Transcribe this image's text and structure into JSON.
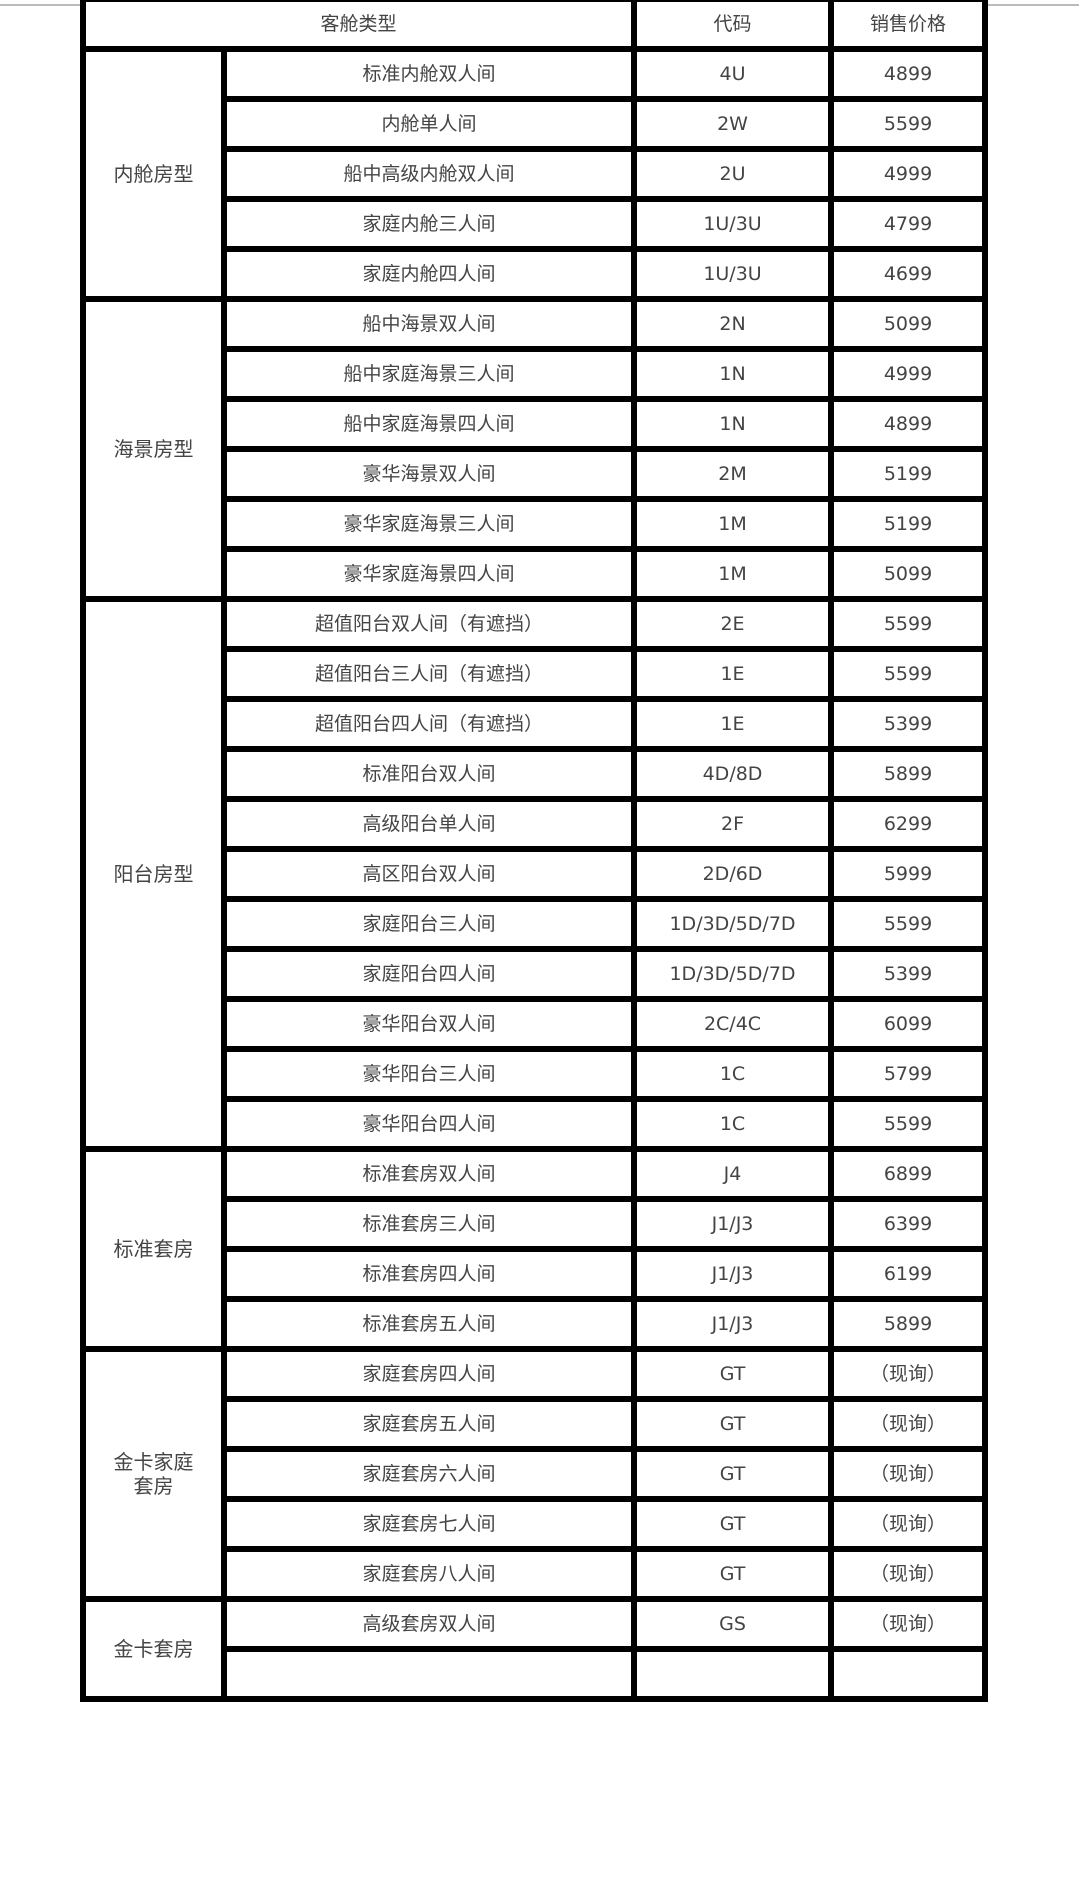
{
  "header": {
    "cabin_type": "客舱类型",
    "code": "代码",
    "price": "销售价格"
  },
  "groups": [
    {
      "category": "内舱房型",
      "rows": [
        {
          "name": "标准内舱双人间",
          "code": "4U",
          "price": "4899"
        },
        {
          "name": "内舱单人间",
          "code": "2W",
          "price": "5599"
        },
        {
          "name": "船中高级内舱双人间",
          "code": "2U",
          "price": "4999"
        },
        {
          "name": "家庭内舱三人间",
          "code": "1U/3U",
          "price": "4799"
        },
        {
          "name": "家庭内舱四人间",
          "code": "1U/3U",
          "price": "4699"
        }
      ]
    },
    {
      "category": "海景房型",
      "rows": [
        {
          "name": "船中海景双人间",
          "code": "2N",
          "price": "5099"
        },
        {
          "name": "船中家庭海景三人间",
          "code": "1N",
          "price": "4999"
        },
        {
          "name": "船中家庭海景四人间",
          "code": "1N",
          "price": "4899"
        },
        {
          "name": "豪华海景双人间",
          "code": "2M",
          "price": "5199"
        },
        {
          "name": "豪华家庭海景三人间",
          "code": "1M",
          "price": "5199"
        },
        {
          "name": "豪华家庭海景四人间",
          "code": "1M",
          "price": "5099"
        }
      ]
    },
    {
      "category": "阳台房型",
      "rows": [
        {
          "name": "超值阳台双人间（有遮挡）",
          "code": "2E",
          "price": "5599"
        },
        {
          "name": "超值阳台三人间（有遮挡）",
          "code": "1E",
          "price": "5599"
        },
        {
          "name": "超值阳台四人间（有遮挡）",
          "code": "1E",
          "price": "5399"
        },
        {
          "name": "标准阳台双人间",
          "code": "4D/8D",
          "price": "5899"
        },
        {
          "name": "高级阳台单人间",
          "code": "2F",
          "price": "6299"
        },
        {
          "name": "高区阳台双人间",
          "code": "2D/6D",
          "price": "5999"
        },
        {
          "name": "家庭阳台三人间",
          "code": "1D/3D/5D/7D",
          "price": "5599"
        },
        {
          "name": "家庭阳台四人间",
          "code": "1D/3D/5D/7D",
          "price": "5399"
        },
        {
          "name": "豪华阳台双人间",
          "code": "2C/4C",
          "price": "6099"
        },
        {
          "name": "豪华阳台三人间",
          "code": "1C",
          "price": "5799"
        },
        {
          "name": "豪华阳台四人间",
          "code": "1C",
          "price": "5599"
        }
      ]
    },
    {
      "category": "标准套房",
      "rows": [
        {
          "name": "标准套房双人间",
          "code": "J4",
          "price": "6899"
        },
        {
          "name": "标准套房三人间",
          "code": "J1/J3",
          "price": "6399"
        },
        {
          "name": "标准套房四人间",
          "code": "J1/J3",
          "price": "6199"
        },
        {
          "name": "标准套房五人间",
          "code": "J1/J3",
          "price": "5899"
        }
      ]
    },
    {
      "category": "金卡家庭\n套房",
      "rows": [
        {
          "name": "家庭套房四人间",
          "code": "GT",
          "price": "（现询）"
        },
        {
          "name": "家庭套房五人间",
          "code": "GT",
          "price": "（现询）"
        },
        {
          "name": "家庭套房六人间",
          "code": "GT",
          "price": "（现询）"
        },
        {
          "name": "家庭套房七人间",
          "code": "GT",
          "price": "（现询）"
        },
        {
          "name": "家庭套房八人间",
          "code": "GT",
          "price": "（现询）"
        }
      ]
    },
    {
      "category": "金卡套房",
      "rows": [
        {
          "name": "高级套房双人间",
          "code": "GS",
          "price": "（现询）"
        },
        {
          "name": "",
          "code": "",
          "price": ""
        }
      ]
    }
  ]
}
